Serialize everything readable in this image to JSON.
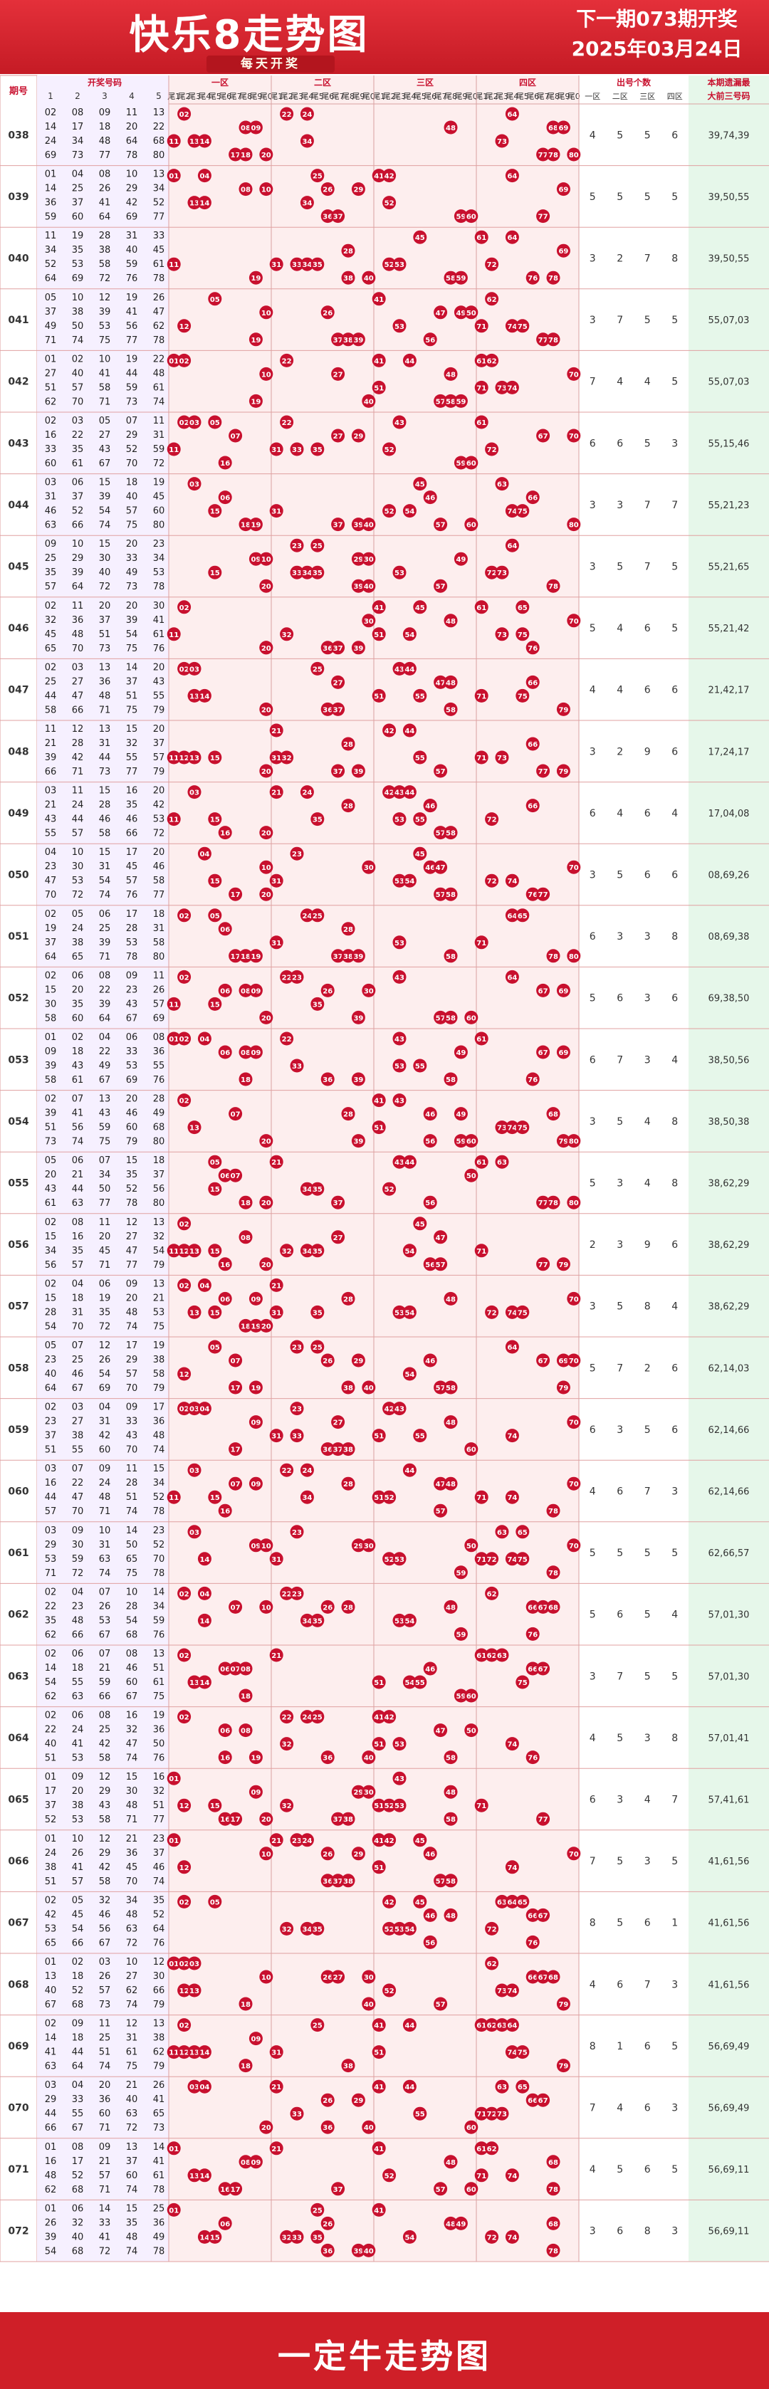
{
  "header": {
    "title": "快乐8走势图",
    "subtitle": "每天开奖",
    "next_issue": "下一期073期开奖",
    "next_date": "2025年03月24日"
  },
  "footer": {
    "text": "一定牛走势图"
  },
  "colors": {
    "brand": "#d3202a",
    "ball": "#c8102e",
    "zone_bg_pink": "#fdeeee",
    "omit_bg": "#e6f7ea",
    "draw_bg": "#fbf5ec",
    "period_bg": "#f6f0ff"
  },
  "table": {
    "period_header": "期号",
    "draw_header": "开奖号码",
    "draw_cols": [
      "1",
      "2",
      "3",
      "4",
      "5"
    ],
    "zone_headers": [
      "一区",
      "二区",
      "三区",
      "四区"
    ],
    "tail_labels": [
      "尾1",
      "尾2",
      "尾3",
      "尾4",
      "尾5",
      "尾6",
      "尾7",
      "尾8",
      "尾9",
      "尾0"
    ],
    "count_header": "出号个数",
    "count_cols": [
      "一区",
      "二区",
      "三区",
      "四区"
    ],
    "omit_header_1": "本期遗漏最",
    "omit_header_2": "大前三号码"
  },
  "chart_data": {
    "type": "table",
    "periods": [
      {
        "issue": "038",
        "numbers": [
          2,
          8,
          9,
          11,
          13,
          14,
          17,
          18,
          20,
          22,
          24,
          34,
          48,
          64,
          68,
          69,
          73,
          77,
          78,
          80
        ],
        "counts": [
          4,
          5,
          5,
          6
        ],
        "omit": "39,74,39"
      },
      {
        "issue": "039",
        "numbers": [
          1,
          4,
          8,
          10,
          13,
          14,
          25,
          26,
          29,
          34,
          36,
          37,
          41,
          42,
          52,
          59,
          60,
          64,
          69,
          77
        ],
        "counts": [
          5,
          5,
          5,
          5
        ],
        "omit": "39,50,55"
      },
      {
        "issue": "040",
        "numbers": [
          11,
          19,
          28,
          31,
          33,
          34,
          35,
          38,
          40,
          45,
          52,
          53,
          58,
          59,
          61,
          64,
          69,
          72,
          76,
          78
        ],
        "counts": [
          3,
          2,
          7,
          8
        ],
        "omit": "39,50,55"
      },
      {
        "issue": "041",
        "numbers": [
          5,
          10,
          12,
          19,
          26,
          37,
          38,
          39,
          41,
          47,
          49,
          50,
          53,
          56,
          62,
          71,
          74,
          75,
          77,
          78
        ],
        "counts": [
          3,
          7,
          5,
          5
        ],
        "omit": "55,07,03"
      },
      {
        "issue": "042",
        "numbers": [
          1,
          2,
          10,
          19,
          22,
          27,
          40,
          41,
          44,
          48,
          51,
          57,
          58,
          59,
          61,
          62,
          70,
          71,
          73,
          74
        ],
        "counts": [
          7,
          4,
          4,
          5
        ],
        "omit": "55,07,03"
      },
      {
        "issue": "043",
        "numbers": [
          2,
          3,
          5,
          7,
          11,
          16,
          22,
          27,
          29,
          31,
          33,
          35,
          43,
          52,
          59,
          60,
          61,
          67,
          70,
          72
        ],
        "counts": [
          6,
          6,
          5,
          3
        ],
        "omit": "55,15,46"
      },
      {
        "issue": "044",
        "numbers": [
          3,
          6,
          15,
          18,
          19,
          31,
          37,
          40,
          45,
          46,
          52,
          54,
          57,
          60,
          63,
          66,
          74,
          75,
          80,
          39
        ],
        "counts": [
          3,
          3,
          7,
          7
        ],
        "omit": "55,21,23"
      },
      {
        "issue": "045",
        "numbers": [
          9,
          10,
          15,
          20,
          23,
          25,
          29,
          30,
          33,
          34,
          35,
          39,
          40,
          49,
          53,
          57,
          64,
          72,
          73,
          78
        ],
        "counts": [
          3,
          5,
          7,
          5
        ],
        "omit": "55,21,65"
      },
      {
        "issue": "046",
        "numbers": [
          2,
          11,
          20,
          30,
          32,
          36,
          37,
          39,
          41,
          45,
          48,
          51,
          54,
          61,
          65,
          70,
          73,
          75,
          76,
          20
        ],
        "counts": [
          5,
          4,
          6,
          5
        ],
        "omit": "55,21,42"
      },
      {
        "issue": "047",
        "numbers": [
          2,
          3,
          13,
          14,
          20,
          25,
          27,
          36,
          37,
          43,
          47,
          48,
          51,
          55,
          58,
          66,
          71,
          75,
          79,
          44
        ],
        "counts": [
          4,
          4,
          6,
          6
        ],
        "omit": "21,42,17"
      },
      {
        "issue": "048",
        "numbers": [
          11,
          12,
          15,
          20,
          21,
          28,
          31,
          32,
          37,
          39,
          42,
          44,
          55,
          57,
          66,
          71,
          73,
          77,
          79,
          13
        ],
        "counts": [
          3,
          2,
          9,
          6
        ],
        "omit": "17,24,17"
      },
      {
        "issue": "049",
        "numbers": [
          3,
          11,
          15,
          16,
          20,
          21,
          24,
          28,
          35,
          42,
          43,
          44,
          46,
          53,
          55,
          57,
          58,
          66,
          72,
          46
        ],
        "counts": [
          6,
          4,
          6,
          4
        ],
        "omit": "17,04,08"
      },
      {
        "issue": "050",
        "numbers": [
          4,
          10,
          15,
          17,
          20,
          23,
          30,
          31,
          45,
          46,
          47,
          53,
          54,
          57,
          58,
          70,
          72,
          74,
          76,
          77
        ],
        "counts": [
          3,
          5,
          6,
          6
        ],
        "omit": "08,69,26"
      },
      {
        "issue": "051",
        "numbers": [
          2,
          5,
          6,
          17,
          18,
          19,
          24,
          25,
          28,
          31,
          38,
          53,
          58,
          64,
          65,
          71,
          78,
          80,
          37,
          39
        ],
        "counts": [
          6,
          3,
          3,
          8
        ],
        "omit": "08,69,38"
      },
      {
        "issue": "052",
        "numbers": [
          2,
          6,
          8,
          9,
          11,
          15,
          20,
          22,
          23,
          26,
          30,
          35,
          39,
          43,
          57,
          58,
          60,
          64,
          67,
          69
        ],
        "counts": [
          5,
          6,
          3,
          6
        ],
        "omit": "69,38,50"
      },
      {
        "issue": "053",
        "numbers": [
          1,
          2,
          4,
          6,
          8,
          9,
          18,
          22,
          33,
          36,
          39,
          43,
          49,
          53,
          55,
          58,
          61,
          67,
          69,
          76
        ],
        "counts": [
          6,
          7,
          3,
          4
        ],
        "omit": "38,50,56"
      },
      {
        "issue": "054",
        "numbers": [
          2,
          7,
          13,
          20,
          28,
          39,
          41,
          43,
          46,
          49,
          51,
          56,
          59,
          60,
          68,
          73,
          74,
          75,
          79,
          80
        ],
        "counts": [
          3,
          5,
          4,
          8
        ],
        "omit": "38,50,38"
      },
      {
        "issue": "055",
        "numbers": [
          5,
          6,
          7,
          15,
          18,
          20,
          21,
          34,
          35,
          37,
          43,
          44,
          50,
          52,
          56,
          61,
          63,
          77,
          78,
          80
        ],
        "counts": [
          5,
          3,
          4,
          8
        ],
        "omit": "38,62,29"
      },
      {
        "issue": "056",
        "numbers": [
          2,
          8,
          11,
          12,
          13,
          15,
          16,
          20,
          27,
          32,
          34,
          35,
          45,
          47,
          54,
          56,
          57,
          71,
          77,
          79
        ],
        "counts": [
          2,
          3,
          9,
          6
        ],
        "omit": "38,62,29"
      },
      {
        "issue": "057",
        "numbers": [
          2,
          4,
          6,
          9,
          13,
          15,
          18,
          19,
          20,
          21,
          28,
          31,
          35,
          48,
          53,
          54,
          70,
          72,
          74,
          75
        ],
        "counts": [
          3,
          5,
          8,
          4
        ],
        "omit": "38,62,29"
      },
      {
        "issue": "058",
        "numbers": [
          5,
          7,
          12,
          17,
          19,
          23,
          25,
          26,
          29,
          38,
          40,
          46,
          54,
          57,
          58,
          64,
          67,
          69,
          70,
          79
        ],
        "counts": [
          5,
          7,
          2,
          6
        ],
        "omit": "62,14,03"
      },
      {
        "issue": "059",
        "numbers": [
          2,
          3,
          4,
          9,
          17,
          23,
          27,
          31,
          33,
          36,
          37,
          38,
          42,
          43,
          48,
          51,
          55,
          60,
          70,
          74
        ],
        "counts": [
          6,
          3,
          5,
          6
        ],
        "omit": "62,14,66"
      },
      {
        "issue": "060",
        "numbers": [
          3,
          7,
          9,
          11,
          15,
          16,
          22,
          24,
          28,
          34,
          44,
          47,
          48,
          51,
          52,
          57,
          70,
          71,
          74,
          78
        ],
        "counts": [
          4,
          6,
          7,
          3
        ],
        "omit": "62,14,66"
      },
      {
        "issue": "061",
        "numbers": [
          3,
          9,
          10,
          14,
          23,
          29,
          30,
          31,
          50,
          52,
          53,
          59,
          63,
          65,
          70,
          71,
          72,
          74,
          75,
          78
        ],
        "counts": [
          5,
          5,
          5,
          5
        ],
        "omit": "62,66,57"
      },
      {
        "issue": "062",
        "numbers": [
          2,
          4,
          7,
          10,
          14,
          22,
          23,
          26,
          28,
          34,
          35,
          48,
          53,
          54,
          59,
          62,
          66,
          67,
          68,
          76
        ],
        "counts": [
          5,
          6,
          5,
          4
        ],
        "omit": "57,01,30"
      },
      {
        "issue": "063",
        "numbers": [
          2,
          6,
          7,
          8,
          13,
          14,
          18,
          21,
          46,
          51,
          54,
          55,
          59,
          60,
          61,
          62,
          63,
          66,
          67,
          75
        ],
        "counts": [
          3,
          7,
          5,
          5
        ],
        "omit": "57,01,30"
      },
      {
        "issue": "064",
        "numbers": [
          2,
          6,
          8,
          16,
          19,
          22,
          24,
          25,
          32,
          36,
          40,
          41,
          42,
          47,
          50,
          51,
          53,
          58,
          74,
          76
        ],
        "counts": [
          4,
          5,
          3,
          8
        ],
        "omit": "57,01,41"
      },
      {
        "issue": "065",
        "numbers": [
          1,
          9,
          12,
          15,
          16,
          17,
          20,
          29,
          30,
          32,
          37,
          38,
          43,
          48,
          51,
          52,
          53,
          58,
          71,
          77
        ],
        "counts": [
          6,
          3,
          4,
          7
        ],
        "omit": "57,41,61"
      },
      {
        "issue": "066",
        "numbers": [
          1,
          10,
          12,
          21,
          23,
          24,
          26,
          29,
          36,
          37,
          38,
          41,
          42,
          45,
          46,
          51,
          57,
          58,
          70,
          74
        ],
        "counts": [
          7,
          5,
          3,
          5
        ],
        "omit": "41,61,56"
      },
      {
        "issue": "067",
        "numbers": [
          2,
          5,
          32,
          34,
          35,
          42,
          45,
          46,
          48,
          52,
          53,
          54,
          56,
          63,
          64,
          65,
          66,
          67,
          72,
          76
        ],
        "counts": [
          8,
          5,
          6,
          1
        ],
        "omit": "41,61,56"
      },
      {
        "issue": "068",
        "numbers": [
          1,
          2,
          3,
          10,
          12,
          13,
          18,
          26,
          27,
          30,
          40,
          52,
          57,
          62,
          66,
          67,
          68,
          73,
          74,
          79
        ],
        "counts": [
          4,
          6,
          7,
          3
        ],
        "omit": "41,61,56"
      },
      {
        "issue": "069",
        "numbers": [
          2,
          9,
          11,
          12,
          13,
          14,
          18,
          25,
          31,
          38,
          41,
          44,
          51,
          61,
          62,
          63,
          64,
          74,
          75,
          79
        ],
        "counts": [
          8,
          1,
          6,
          5
        ],
        "omit": "56,69,49"
      },
      {
        "issue": "070",
        "numbers": [
          3,
          4,
          20,
          21,
          26,
          29,
          33,
          36,
          40,
          41,
          44,
          55,
          60,
          63,
          66,
          67,
          73,
          72,
          71,
          65
        ],
        "counts": [
          7,
          4,
          6,
          3
        ],
        "omit": "56,69,49"
      },
      {
        "issue": "071",
        "numbers": [
          1,
          8,
          9,
          13,
          14,
          16,
          17,
          21,
          37,
          41,
          48,
          52,
          57,
          60,
          61,
          62,
          68,
          74,
          71,
          78
        ],
        "counts": [
          4,
          5,
          6,
          5
        ],
        "omit": "56,69,11"
      },
      {
        "issue": "072",
        "numbers": [
          1,
          6,
          14,
          15,
          25,
          26,
          32,
          33,
          35,
          36,
          39,
          40,
          41,
          48,
          49,
          54,
          68,
          72,
          74,
          78
        ],
        "counts": [
          3,
          6,
          8,
          3
        ],
        "omit": "56,69,11"
      }
    ]
  }
}
